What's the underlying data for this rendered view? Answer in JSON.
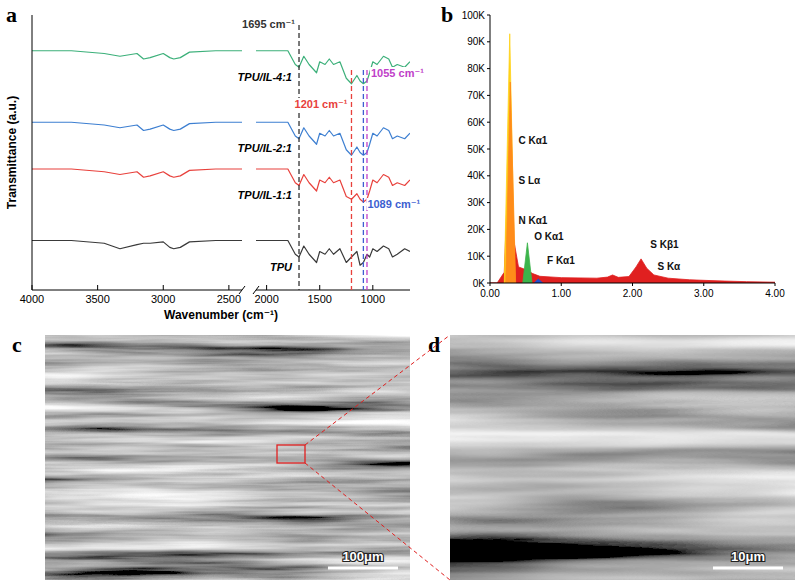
{
  "chart_data": [
    {
      "panel": "a",
      "type": "line",
      "xlabel": "Wavenumber (cm⁻¹)",
      "ylabel": "Transmittance (a.u.)",
      "xlim": [
        4000,
        650
      ],
      "xbreak": [
        2400,
        2100
      ],
      "xticks": [
        4000,
        3500,
        3000,
        2500,
        2000,
        1500,
        1000
      ],
      "ylim": [
        0,
        100
      ],
      "tick_labels": "x",
      "grid": false,
      "x": [
        4000,
        3700,
        3450,
        3330,
        3200,
        3150,
        3100,
        3000,
        2950,
        2920,
        2870,
        2800,
        2600,
        2400,
        2250,
        2100,
        1900,
        1800,
        1730,
        1695,
        1650,
        1600,
        1530,
        1500,
        1450,
        1410,
        1370,
        1310,
        1250,
        1201,
        1150,
        1120,
        1089,
        1055,
        1030,
        1000,
        960,
        900,
        850,
        815,
        770,
        700,
        650
      ],
      "series": [
        {
          "name": "TPU",
          "color": "#3a3a3a",
          "values": [
            18,
            18,
            17,
            15,
            16.5,
            17,
            17,
            17.5,
            15.5,
            15,
            15.5,
            17.5,
            18,
            18,
            null,
            18,
            18,
            18,
            13,
            12,
            16,
            13,
            10,
            14,
            13,
            15,
            13,
            15,
            10,
            12,
            14,
            9,
            10,
            13,
            12,
            15,
            14,
            16,
            15,
            12,
            13,
            15,
            14
          ]
        },
        {
          "name": "TPU/IL-1:1",
          "color": "#e8413c",
          "values": [
            44,
            44,
            43,
            42,
            43,
            41,
            41.5,
            43,
            41.5,
            41,
            41.5,
            43.5,
            44,
            44,
            null,
            44,
            44,
            44,
            39,
            38,
            42,
            39,
            36,
            40,
            39,
            41,
            39,
            40,
            34,
            33,
            35,
            33,
            32,
            33,
            36,
            40,
            39,
            42,
            41,
            38,
            39,
            38,
            40
          ]
        },
        {
          "name": "TPU/IL-2:1",
          "color": "#3d7fd1",
          "values": [
            61,
            61,
            60,
            59,
            60,
            58,
            58.5,
            60,
            58.5,
            58,
            58.5,
            60.5,
            61,
            61,
            null,
            61,
            61,
            61,
            56,
            55,
            59,
            56,
            53,
            57,
            56,
            58,
            56,
            57,
            51,
            49,
            52,
            50,
            49,
            50,
            53,
            57,
            56,
            59,
            58,
            55,
            56,
            55,
            57
          ]
        },
        {
          "name": "TPU/IL-4:1",
          "color": "#3cb07a",
          "values": [
            87,
            87,
            86,
            85,
            86,
            84,
            84.5,
            86,
            84.5,
            84,
            84.5,
            86.5,
            87,
            87,
            null,
            87,
            87,
            87,
            82,
            81,
            85,
            82,
            79,
            83,
            82,
            84,
            82,
            83,
            77,
            75,
            78,
            76,
            75,
            76,
            79,
            83,
            82,
            85,
            84,
            81,
            82,
            81,
            83
          ]
        }
      ],
      "annotations": [
        {
          "x": 1695,
          "text": "1695 cm⁻¹",
          "color": "#333333"
        },
        {
          "x": 1201,
          "text": "1201 cm⁻¹",
          "color": "#e8413c"
        },
        {
          "x": 1089,
          "text": "1089 cm⁻¹",
          "color": "#3d5fd1"
        },
        {
          "x": 1055,
          "text": "1055 cm⁻¹",
          "color": "#c040c8"
        }
      ]
    },
    {
      "panel": "b",
      "type": "area",
      "grid": false,
      "xlim": [
        0,
        4
      ],
      "xticks": [
        {
          "value": 0,
          "label": "0.00"
        },
        {
          "value": 1,
          "label": "1.00"
        },
        {
          "value": 2,
          "label": "2.00"
        },
        {
          "value": 3,
          "label": "3.00"
        },
        {
          "value": 4,
          "label": "4.00"
        }
      ],
      "ylim": [
        0,
        100000
      ],
      "yticks": [
        {
          "value": 0,
          "label": "0K"
        },
        {
          "value": 10000,
          "label": "10K"
        },
        {
          "value": 20000,
          "label": "20K"
        },
        {
          "value": 30000,
          "label": "30K"
        },
        {
          "value": 40000,
          "label": "40K"
        },
        {
          "value": 50000,
          "label": "50K"
        },
        {
          "value": 60000,
          "label": "60K"
        },
        {
          "value": 70000,
          "label": "70K"
        },
        {
          "value": 80000,
          "label": "80K"
        },
        {
          "value": 90000,
          "label": "90K"
        },
        {
          "value": 100000,
          "label": "100K"
        }
      ],
      "series": [
        {
          "color": "#e02020",
          "x": [
            0,
            0.1,
            0.2,
            0.25,
            0.28,
            0.32,
            0.4,
            0.5,
            0.6,
            0.7,
            1.0,
            1.5,
            1.65,
            1.72,
            1.8,
            1.95,
            2.05,
            2.12,
            2.2,
            2.3,
            2.5,
            2.8,
            3.2,
            3.6,
            4.0
          ],
          "values": [
            0,
            0,
            4000,
            38000,
            48000,
            18000,
            6000,
            5000,
            3500,
            2500,
            2000,
            1800,
            2200,
            3000,
            2100,
            2400,
            6000,
            9000,
            5500,
            3000,
            1800,
            1200,
            800,
            500,
            300
          ]
        },
        {
          "color": "#ffd21a",
          "x": [
            0.2,
            0.277,
            0.35
          ],
          "values": [
            0,
            93000,
            0
          ]
        },
        {
          "color": "#ff8c1a",
          "x": [
            0.22,
            0.285,
            0.36
          ],
          "values": [
            0,
            75000,
            0
          ]
        },
        {
          "color": "#3cb44b",
          "x": [
            0.46,
            0.525,
            0.59
          ],
          "values": [
            0,
            15000,
            0
          ]
        },
        {
          "color": "#2050d0",
          "x": [
            0.62,
            0.677,
            0.74
          ],
          "values": [
            0,
            1500,
            0
          ]
        }
      ],
      "annotations": [
        {
          "x": 0.4,
          "y": 52000,
          "text": "C Kα1"
        },
        {
          "x": 0.4,
          "y": 37000,
          "text": "S Lα"
        },
        {
          "x": 0.4,
          "y": 22000,
          "text": "N Kα1"
        },
        {
          "x": 0.62,
          "y": 16000,
          "text": "O Kα1"
        },
        {
          "x": 0.8,
          "y": 7000,
          "text": "F Kα1"
        },
        {
          "x": 2.25,
          "y": 13000,
          "text": "S Kβ1"
        },
        {
          "x": 2.35,
          "y": 5000,
          "text": "S Kα"
        }
      ]
    },
    {
      "panel": "c",
      "type": "image",
      "scale_bar": "100μm"
    },
    {
      "panel": "d",
      "type": "image",
      "scale_bar": "10μm"
    }
  ]
}
